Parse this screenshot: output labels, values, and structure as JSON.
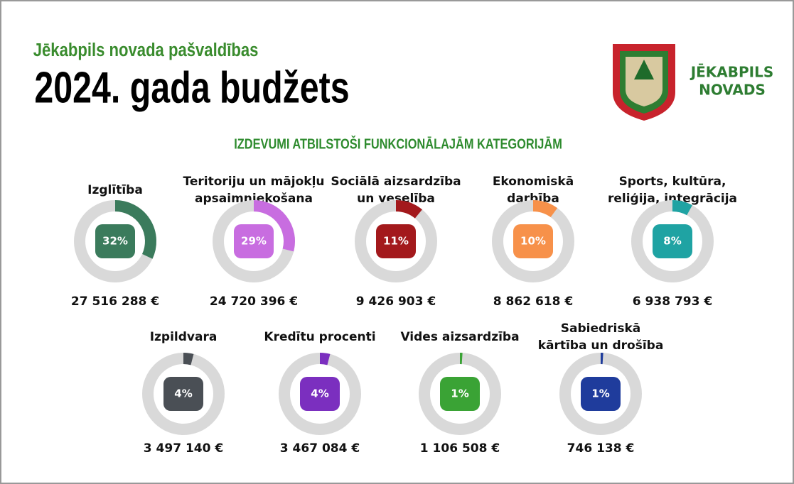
{
  "header": {
    "kicker": "Jēkabpils novada pašvaldības",
    "title": "2024. gada budžets",
    "subtitle": "IZDEVUMI ATBILSTOŠI FUNKCIONĀLAJĀM KATEGORIJĀM"
  },
  "logo": {
    "line1": "JĒKABPILS",
    "line2": "NOVADS"
  },
  "chart_data": {
    "type": "donut",
    "items": [
      {
        "label": [
          "Izglītība"
        ],
        "percent": 32,
        "percent_label": "32%",
        "amount": "27 516 288 €",
        "color": "#3b7b5c"
      },
      {
        "label": [
          "Teritoriju un mājokļu",
          "apsaimniekošana"
        ],
        "percent": 29,
        "percent_label": "29%",
        "amount": "24 720 396 €",
        "color": "#c86de0"
      },
      {
        "label": [
          "Sociālā aizsardzība",
          "un veselība"
        ],
        "percent": 11,
        "percent_label": "11%",
        "amount": "9 426 903 €",
        "color": "#a3191c"
      },
      {
        "label": [
          "Ekonomiskā",
          "darbība"
        ],
        "percent": 10,
        "percent_label": "10%",
        "amount": "8 862 618 €",
        "color": "#f7914a"
      },
      {
        "label": [
          "Sports, kultūra,",
          "reliģija, integrācija"
        ],
        "percent": 8,
        "percent_label": "8%",
        "amount": "6 938 793 €",
        "color": "#1fa3a3"
      },
      {
        "label": [
          "Izpildvara"
        ],
        "percent": 4,
        "percent_label": "4%",
        "amount": "3 497 140 €",
        "color": "#4a4f55"
      },
      {
        "label": [
          "Kredītu procenti"
        ],
        "percent": 4,
        "percent_label": "4%",
        "amount": "3 467 084 €",
        "color": "#7b2fbf"
      },
      {
        "label": [
          "Vides aizsardzība"
        ],
        "percent": 1,
        "percent_label": "1%",
        "amount": "1 106 508 €",
        "color": "#3aa335"
      },
      {
        "label": [
          "Sabiedriskā",
          "kārtība un drošība"
        ],
        "percent": 1,
        "percent_label": "1%",
        "amount": "746 138 €",
        "color": "#1f3c9c"
      }
    ]
  }
}
